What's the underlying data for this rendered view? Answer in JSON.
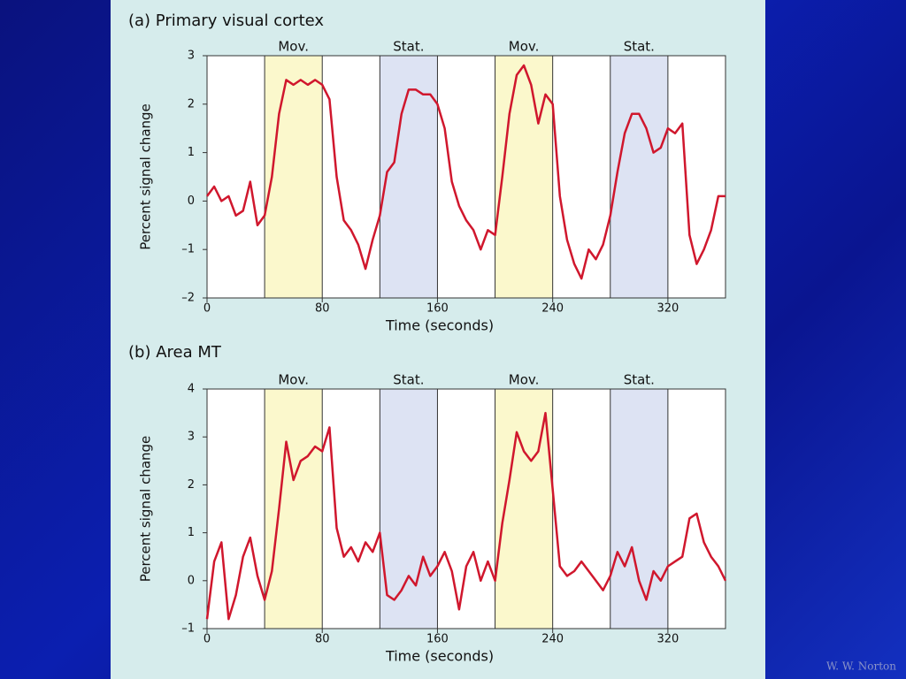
{
  "chart_data": [
    {
      "type": "line",
      "title": "(a) Primary visual cortex",
      "x_label": "Time (seconds)",
      "y_label": "Percent signal change",
      "xlim": [
        0,
        360
      ],
      "xticks": [
        0,
        80,
        160,
        240,
        320
      ],
      "ylim": [
        -2,
        3
      ],
      "yticks": [
        {
          "value": -2,
          "label": "–2"
        },
        {
          "value": -1,
          "label": "–1"
        },
        0,
        1,
        2,
        3
      ],
      "blocks": [
        {
          "label": "Mov.",
          "start": 40,
          "end": 80,
          "color": "#fbf8cc"
        },
        {
          "label": "Stat.",
          "start": 120,
          "end": 160,
          "color": "#dde3f3"
        },
        {
          "label": "Mov.",
          "start": 200,
          "end": 240,
          "color": "#fbf8cc"
        },
        {
          "label": "Stat.",
          "start": 280,
          "end": 320,
          "color": "#dde3f3"
        }
      ],
      "x": [
        0,
        5,
        10,
        15,
        20,
        25,
        30,
        35,
        40,
        45,
        50,
        55,
        60,
        65,
        70,
        75,
        80,
        85,
        90,
        95,
        100,
        105,
        110,
        115,
        120,
        125,
        130,
        135,
        140,
        145,
        150,
        155,
        160,
        165,
        170,
        175,
        180,
        185,
        190,
        195,
        200,
        205,
        210,
        215,
        220,
        225,
        230,
        235,
        240,
        245,
        250,
        255,
        260,
        265,
        270,
        275,
        280,
        285,
        290,
        295,
        300,
        305,
        310,
        315,
        320,
        325,
        330,
        335,
        340,
        345,
        350,
        355,
        360
      ],
      "series": [
        {
          "color": "#d0172d",
          "values": [
            0.1,
            0.3,
            0.0,
            0.1,
            -0.3,
            -0.2,
            0.4,
            -0.5,
            -0.3,
            0.5,
            1.8,
            2.5,
            2.4,
            2.5,
            2.4,
            2.5,
            2.4,
            2.1,
            0.5,
            -0.4,
            -0.6,
            -0.9,
            -1.4,
            -0.8,
            -0.3,
            0.6,
            0.8,
            1.8,
            2.3,
            2.3,
            2.2,
            2.2,
            2.0,
            1.5,
            0.4,
            -0.1,
            -0.4,
            -0.6,
            -1.0,
            -0.6,
            -0.7,
            0.5,
            1.8,
            2.6,
            2.8,
            2.4,
            1.6,
            2.2,
            2.0,
            0.1,
            -0.8,
            -1.3,
            -1.6,
            -1.0,
            -1.2,
            -0.9,
            -0.3,
            0.6,
            1.4,
            1.8,
            1.8,
            1.5,
            1.0,
            1.1,
            1.5,
            1.4,
            1.6,
            -0.7,
            -1.3,
            -1.0,
            -0.6,
            0.1,
            0.1
          ]
        }
      ]
    },
    {
      "type": "line",
      "title": "(b) Area MT",
      "x_label": "Time (seconds)",
      "y_label": "Percent signal change",
      "xlim": [
        0,
        360
      ],
      "xticks": [
        0,
        80,
        160,
        240,
        320
      ],
      "ylim": [
        -1,
        4
      ],
      "yticks": [
        {
          "value": -1,
          "label": "–1"
        },
        0,
        1,
        2,
        3,
        4
      ],
      "blocks": [
        {
          "label": "Mov.",
          "start": 40,
          "end": 80,
          "color": "#fbf8cc"
        },
        {
          "label": "Stat.",
          "start": 120,
          "end": 160,
          "color": "#dde3f3"
        },
        {
          "label": "Mov.",
          "start": 200,
          "end": 240,
          "color": "#fbf8cc"
        },
        {
          "label": "Stat.",
          "start": 280,
          "end": 320,
          "color": "#dde3f3"
        }
      ],
      "x": [
        0,
        5,
        10,
        15,
        20,
        25,
        30,
        35,
        40,
        45,
        50,
        55,
        60,
        65,
        70,
        75,
        80,
        85,
        90,
        95,
        100,
        105,
        110,
        115,
        120,
        125,
        130,
        135,
        140,
        145,
        150,
        155,
        160,
        165,
        170,
        175,
        180,
        185,
        190,
        195,
        200,
        205,
        210,
        215,
        220,
        225,
        230,
        235,
        240,
        245,
        250,
        255,
        260,
        265,
        270,
        275,
        280,
        285,
        290,
        295,
        300,
        305,
        310,
        315,
        320,
        325,
        330,
        335,
        340,
        345,
        350,
        355,
        360
      ],
      "series": [
        {
          "color": "#d0172d",
          "values": [
            -0.8,
            0.4,
            0.8,
            -0.8,
            -0.3,
            0.5,
            0.9,
            0.1,
            -0.4,
            0.2,
            1.5,
            2.9,
            2.1,
            2.5,
            2.6,
            2.8,
            2.7,
            3.2,
            1.1,
            0.5,
            0.7,
            0.4,
            0.8,
            0.6,
            1.0,
            -0.3,
            -0.4,
            -0.2,
            0.1,
            -0.1,
            0.5,
            0.1,
            0.3,
            0.6,
            0.2,
            -0.6,
            0.3,
            0.6,
            0.0,
            0.4,
            0.0,
            1.2,
            2.1,
            3.1,
            2.7,
            2.5,
            2.7,
            3.5,
            1.9,
            0.3,
            0.1,
            0.2,
            0.4,
            0.2,
            0.0,
            -0.2,
            0.1,
            0.6,
            0.3,
            0.7,
            0.0,
            -0.4,
            0.2,
            0.0,
            0.3,
            0.4,
            0.5,
            1.3,
            1.4,
            0.8,
            0.5,
            0.3,
            0.0
          ]
        }
      ]
    }
  ],
  "watermark": "W. W. Norton"
}
